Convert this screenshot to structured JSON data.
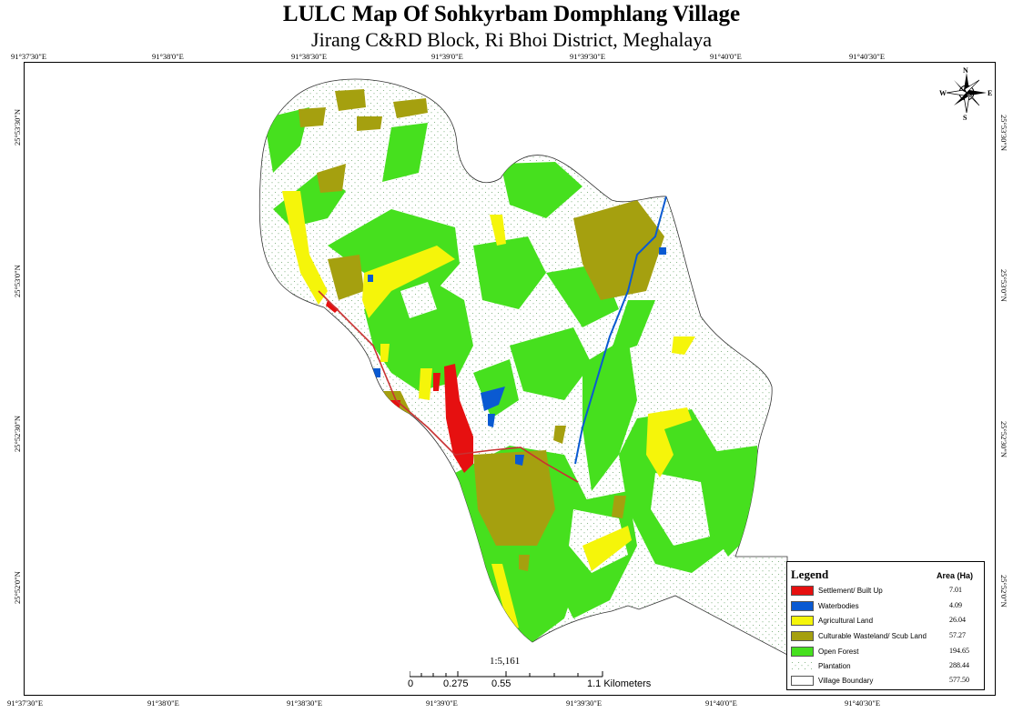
{
  "title": "LULC Map Of Sohkyrbam Domphlang Village",
  "subtitle": "Jirang C&RD Block, Ri Bhoi District, Meghalaya",
  "top_lon_labels": [
    "91°37'30\"E",
    "91°38'0\"E",
    "91°38'30\"E",
    "91°39'0\"E",
    "91°39'30\"E",
    "91°40'0\"E",
    "91°40'30\"E"
  ],
  "bottom_lon_labels": [
    "91°37'30\"E",
    "91°38'0\"E",
    "91°38'30\"E",
    "91°39'0\"E",
    "91°39'30\"E",
    "91°40'0\"E",
    "91°40'30\"E"
  ],
  "left_lat_labels": [
    "25°53'30\"N",
    "25°53'0\"N",
    "25°52'30\"N",
    "25°52'0\"N"
  ],
  "right_lat_labels": [
    "25°53'30\"N",
    "25°53'0\"N",
    "25°52'30\"N",
    "25°52'0\"N"
  ],
  "compass": {
    "icon": "north-arrow-compass-icon",
    "n": "N",
    "s": "S",
    "e": "E",
    "w": "W"
  },
  "legend": {
    "heading": "Legend",
    "area_heading": "Area (Ha)",
    "items": [
      {
        "label": "Settlement/ Built Up",
        "area": "7.01",
        "color": "#e61010"
      },
      {
        "label": "Waterbodies",
        "area": "4.09",
        "color": "#0a5ad2"
      },
      {
        "label": "Agricultural Land",
        "area": "26.04",
        "color": "#f5f50a"
      },
      {
        "label": "Culturable Wasteland/ Scub Land",
        "area": "57.27",
        "color": "#a5a00f"
      },
      {
        "label": "Open Forest",
        "area": "194.65",
        "color": "#46e01e"
      },
      {
        "label": "Plantation",
        "area": "288.44",
        "color": "#ffffff"
      },
      {
        "label": "Village Boundary",
        "area": "577.50",
        "color": "#ffffff"
      }
    ]
  },
  "scale": {
    "ratio": "1:5,161",
    "ticks": [
      "0",
      "0.275",
      "0.55",
      "1.1 Kilometers"
    ]
  }
}
